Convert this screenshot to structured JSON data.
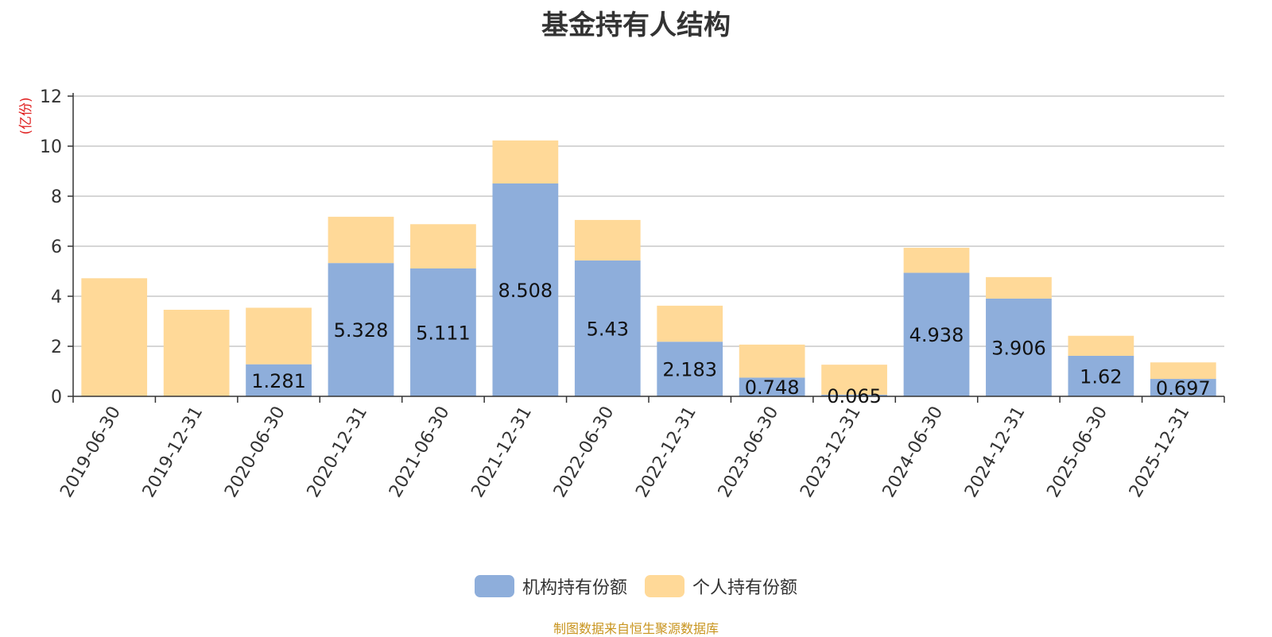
{
  "title": "基金持有人结构",
  "footer": "制图数据来自恒生聚源数据库",
  "chart_data": {
    "type": "bar",
    "stacked": true,
    "title": "基金持有人结构",
    "ylabel": "(亿份)",
    "xlabel": "",
    "ylim": [
      0,
      12
    ],
    "yticks": [
      0,
      2,
      4,
      6,
      8,
      10,
      12
    ],
    "grid": true,
    "legend_position": "bottom-center",
    "categories": [
      "2019-06-30",
      "2019-12-31",
      "2020-06-30",
      "2020-12-31",
      "2021-06-30",
      "2021-12-31",
      "2022-06-30",
      "2022-12-31",
      "2023-06-30",
      "2023-12-31",
      "2024-06-30",
      "2024-12-31",
      "2025-06-30",
      "2025-12-31"
    ],
    "series": [
      {
        "name": "机构持有份额",
        "color": "#8eaedb",
        "values": [
          0,
          0,
          1.281,
          5.328,
          5.111,
          8.508,
          5.43,
          2.183,
          0.748,
          0.065,
          4.938,
          3.906,
          1.62,
          0.697
        ],
        "labels": [
          "",
          "",
          "1.281",
          "5.328",
          "5.111",
          "8.508",
          "5.43",
          "2.183",
          "0.748",
          "0.065",
          "4.938",
          "3.906",
          "1.62",
          "0.697"
        ]
      },
      {
        "name": "个人持有份额",
        "color": "#ffd998",
        "values": [
          4.72,
          3.46,
          2.26,
          1.85,
          1.77,
          1.72,
          1.62,
          1.44,
          1.32,
          1.2,
          1.0,
          0.86,
          0.8,
          0.66
        ]
      }
    ]
  }
}
